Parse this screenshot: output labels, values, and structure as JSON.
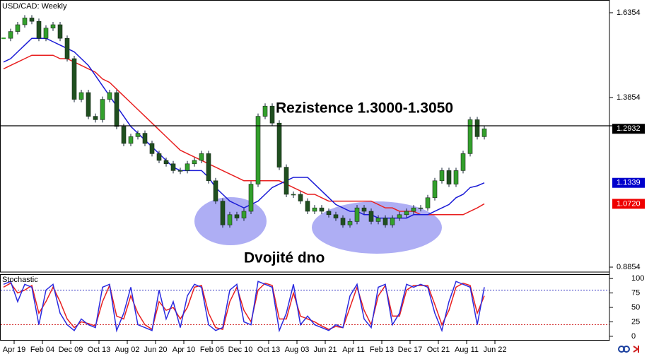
{
  "chart_data": [
    {
      "type": "candlestick",
      "title": "USD/CAD: Weekly",
      "up_color": "#33a02c",
      "down_color": "#1f4f1f",
      "x": [
        0,
        1,
        2,
        3,
        4,
        5,
        6,
        7,
        8,
        9,
        10,
        11,
        12,
        13,
        14,
        15,
        16,
        17,
        18,
        19,
        20,
        21,
        22,
        23,
        24,
        25,
        26,
        27,
        28,
        29,
        30,
        31,
        32,
        33,
        34,
        35,
        36,
        37,
        38,
        39,
        40,
        41,
        42,
        43,
        44,
        45,
        46,
        47,
        48,
        49,
        50,
        51,
        52,
        53,
        54,
        55,
        56,
        57,
        58,
        59,
        60,
        61,
        62,
        63,
        64,
        65,
        66,
        67,
        68
      ],
      "xlim": [
        -0.5,
        85.7
      ],
      "xticks": [
        {
          "value": 1.5,
          "label": "Apr 19"
        },
        {
          "value": 5.5,
          "label": "Feb 04"
        },
        {
          "value": 9.5,
          "label": "Dec 09"
        },
        {
          "value": 13.5,
          "label": "Oct 13"
        },
        {
          "value": 17.5,
          "label": "Aug 02"
        },
        {
          "value": 21.5,
          "label": "Jun 20"
        },
        {
          "value": 25.5,
          "label": "Apr 10"
        },
        {
          "value": 29.5,
          "label": "Feb 05"
        },
        {
          "value": 33.5,
          "label": "Dec 10"
        },
        {
          "value": 37.5,
          "label": "Oct 13"
        },
        {
          "value": 41.5,
          "label": "Aug 03"
        },
        {
          "value": 45.5,
          "label": "Jun 21"
        },
        {
          "value": 49.5,
          "label": "Apr 11"
        },
        {
          "value": 53.5,
          "label": "Feb 13"
        },
        {
          "value": 57.5,
          "label": "Dec 17"
        },
        {
          "value": 61.5,
          "label": "Oct 21"
        },
        {
          "value": 65.5,
          "label": "Aug 11"
        },
        {
          "value": 69.5,
          "label": "Jun 22"
        }
      ],
      "ylim": [
        0.8708,
        1.6729
      ],
      "yticks": [
        1.6354,
        1.3854,
        0.8854
      ],
      "series": [
        {
          "name": "USD/CAD",
          "values": [
            1.56,
            1.58,
            1.6,
            1.62,
            1.61,
            1.56,
            1.59,
            1.6,
            1.56,
            1.5,
            1.38,
            1.4,
            1.33,
            1.32,
            1.38,
            1.4,
            1.3,
            1.25,
            1.27,
            1.28,
            1.25,
            1.22,
            1.2,
            1.19,
            1.17,
            1.17,
            1.19,
            1.2,
            1.22,
            1.14,
            1.08,
            1.01,
            1.04,
            1.03,
            1.05,
            1.13,
            1.33,
            1.36,
            1.31,
            1.18,
            1.1,
            1.1,
            1.08,
            1.05,
            1.06,
            1.05,
            1.04,
            1.03,
            1.01,
            1.02,
            1.06,
            1.05,
            1.02,
            1.03,
            1.01,
            1.03,
            1.04,
            1.05,
            1.06,
            1.06,
            1.09,
            1.14,
            1.17,
            1.13,
            1.17,
            1.22,
            1.32,
            1.27,
            1.2932
          ]
        },
        {
          "color": "#1a1ad6",
          "values": [
            1.49,
            1.5,
            1.52,
            1.54,
            1.56,
            1.56,
            1.56,
            1.55,
            1.54,
            1.53,
            1.52,
            1.5,
            1.48,
            1.45,
            1.42,
            1.39,
            1.36,
            1.33,
            1.3,
            1.28,
            1.26,
            1.24,
            1.22,
            1.2,
            1.18,
            1.17,
            1.17,
            1.17,
            1.17,
            1.15,
            1.12,
            1.1,
            1.08,
            1.07,
            1.06,
            1.07,
            1.08,
            1.1,
            1.12,
            1.13,
            1.14,
            1.15,
            1.15,
            1.15,
            1.13,
            1.11,
            1.09,
            1.07,
            1.06,
            1.05,
            1.05,
            1.04,
            1.04,
            1.03,
            1.03,
            1.03,
            1.03,
            1.03,
            1.04,
            1.04,
            1.04,
            1.05,
            1.06,
            1.07,
            1.09,
            1.1,
            1.12,
            1.125,
            1.1339
          ]
        },
        {
          "color": "#e82020",
          "values": [
            1.47,
            1.48,
            1.49,
            1.5,
            1.51,
            1.51,
            1.51,
            1.51,
            1.5,
            1.5,
            1.49,
            1.48,
            1.47,
            1.46,
            1.44,
            1.43,
            1.41,
            1.39,
            1.37,
            1.35,
            1.33,
            1.31,
            1.29,
            1.27,
            1.25,
            1.23,
            1.22,
            1.21,
            1.2,
            1.19,
            1.18,
            1.17,
            1.16,
            1.15,
            1.14,
            1.14,
            1.14,
            1.14,
            1.14,
            1.14,
            1.13,
            1.12,
            1.11,
            1.1,
            1.1,
            1.09,
            1.08,
            1.08,
            1.08,
            1.08,
            1.08,
            1.08,
            1.08,
            1.07,
            1.06,
            1.06,
            1.05,
            1.05,
            1.05,
            1.04,
            1.04,
            1.04,
            1.04,
            1.04,
            1.04,
            1.04,
            1.05,
            1.06,
            1.072
          ]
        }
      ],
      "resistance_level": 1.3021,
      "price_markers": [
        {
          "value": 1.2932,
          "label": "1.2932",
          "color": "#000000"
        },
        {
          "value": 1.1339,
          "label": "1.1339",
          "color": "#0000cc"
        },
        {
          "value": 1.072,
          "label": "1.0720",
          "color": "#ee0000"
        }
      ],
      "annotations": [
        "Rezistence 1.3000-1.3050",
        "Dvojité dno"
      ]
    },
    {
      "type": "line",
      "title": "Stochastic",
      "ylim": [
        -7.5,
        107.5
      ],
      "yticks": [
        0,
        25,
        50,
        75,
        100
      ],
      "levels": [
        80,
        20
      ],
      "series": [
        {
          "color": "#2a2ae0",
          "values": [
            90,
            95,
            60,
            90,
            85,
            20,
            80,
            90,
            40,
            20,
            10,
            30,
            20,
            15,
            85,
            90,
            10,
            40,
            85,
            20,
            15,
            10,
            80,
            30,
            60,
            15,
            70,
            90,
            85,
            20,
            10,
            15,
            80,
            90,
            25,
            20,
            95,
            90,
            85,
            10,
            40,
            90,
            20,
            35,
            20,
            15,
            10,
            20,
            15,
            70,
            90,
            30,
            15,
            85,
            90,
            20,
            40,
            90,
            85,
            90,
            85,
            40,
            10,
            60,
            95,
            90,
            85,
            20,
            85
          ]
        },
        {
          "color": "#e82020",
          "values": [
            85,
            92,
            75,
            80,
            88,
            40,
            60,
            85,
            60,
            30,
            15,
            25,
            22,
            18,
            60,
            88,
            35,
            30,
            70,
            40,
            20,
            12,
            60,
            45,
            50,
            30,
            50,
            85,
            88,
            40,
            15,
            12,
            60,
            85,
            45,
            25,
            80,
            92,
            88,
            30,
            30,
            75,
            35,
            30,
            25,
            18,
            12,
            17,
            15,
            50,
            85,
            45,
            20,
            70,
            88,
            35,
            35,
            80,
            88,
            88,
            88,
            55,
            20,
            45,
            85,
            92,
            88,
            40,
            70
          ]
        }
      ]
    }
  ]
}
